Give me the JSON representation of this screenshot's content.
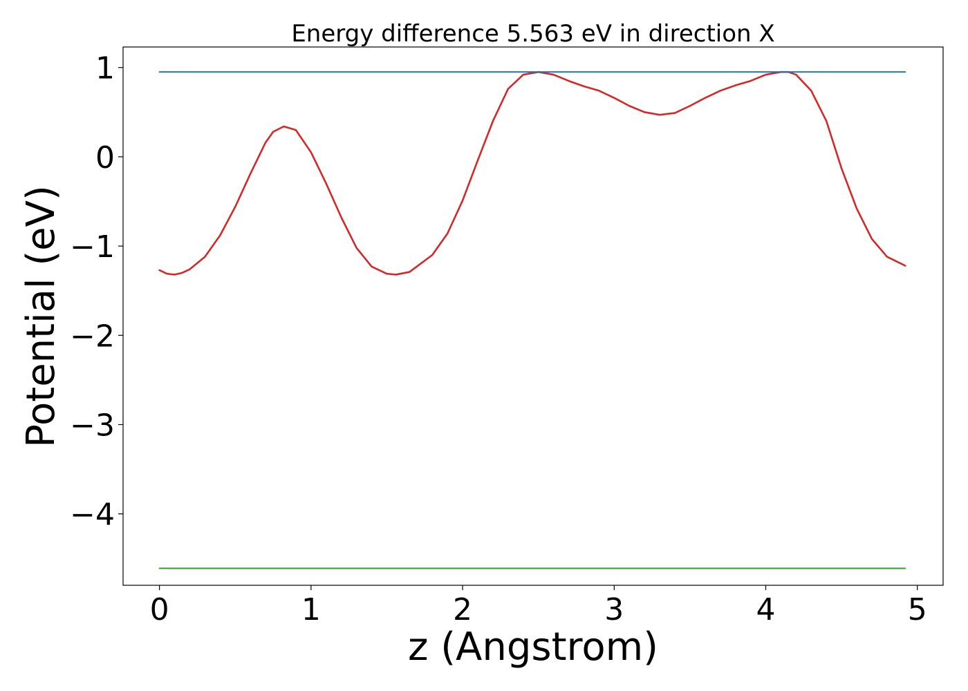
{
  "chart_data": {
    "type": "line",
    "title": "Energy difference 5.563 eV in direction X",
    "xlabel": "z (Angstrom)",
    "ylabel": "Potential (eV)",
    "xlim": [
      -0.24,
      5.17
    ],
    "ylim": [
      -4.8,
      1.23
    ],
    "xticks": [
      0,
      1,
      2,
      3,
      4,
      5
    ],
    "yticks": [
      1,
      0,
      -1,
      -2,
      -3,
      -4
    ],
    "xtick_labels": [
      "0",
      "1",
      "2",
      "3",
      "4",
      "5"
    ],
    "ytick_labels": [
      "1",
      "0",
      "−1",
      "−2",
      "−3",
      "−4"
    ],
    "grid": false,
    "series": [
      {
        "color": "#d62728",
        "x": [
          0,
          0.05,
          0.1,
          0.15,
          0.2,
          0.3,
          0.4,
          0.5,
          0.6,
          0.7,
          0.75,
          0.82,
          0.9,
          1.0,
          1.1,
          1.2,
          1.3,
          1.4,
          1.5,
          1.56,
          1.65,
          1.8,
          1.9,
          2.0,
          2.1,
          2.2,
          2.3,
          2.4,
          2.5,
          2.6,
          2.7,
          2.8,
          2.9,
          3.0,
          3.1,
          3.2,
          3.3,
          3.4,
          3.5,
          3.6,
          3.7,
          3.8,
          3.9,
          4.0,
          4.1,
          4.15,
          4.2,
          4.3,
          4.4,
          4.5,
          4.6,
          4.7,
          4.8,
          4.92
        ],
        "y": [
          -1.27,
          -1.31,
          -1.32,
          -1.3,
          -1.26,
          -1.12,
          -0.88,
          -0.56,
          -0.19,
          0.16,
          0.28,
          0.34,
          0.3,
          0.05,
          -0.3,
          -0.68,
          -1.02,
          -1.23,
          -1.31,
          -1.32,
          -1.29,
          -1.1,
          -0.86,
          -0.49,
          -0.04,
          0.4,
          0.76,
          0.92,
          0.95,
          0.92,
          0.85,
          0.79,
          0.74,
          0.66,
          0.57,
          0.5,
          0.47,
          0.49,
          0.57,
          0.66,
          0.74,
          0.8,
          0.85,
          0.92,
          0.95,
          0.95,
          0.92,
          0.74,
          0.4,
          -0.13,
          -0.58,
          -0.92,
          -1.12,
          -1.22
        ]
      },
      {
        "color": "#1f77b4",
        "x": [
          0,
          4.92
        ],
        "y": [
          0.95,
          0.95
        ]
      },
      {
        "color": "#2ca02c",
        "x": [
          0,
          4.92
        ],
        "y": [
          -4.61,
          -4.61
        ]
      }
    ]
  }
}
